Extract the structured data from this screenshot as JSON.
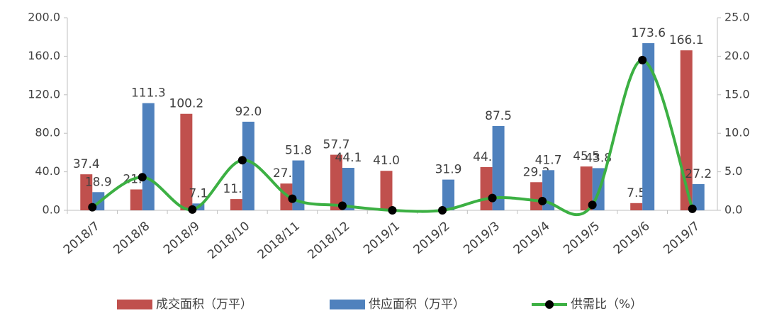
{
  "chart_data": {
    "type": "bar_line",
    "categories": [
      "2018/7",
      "2018/8",
      "2018/9",
      "2018/10",
      "2018/11",
      "2018/12",
      "2019/1",
      "2019/2",
      "2019/3",
      "2019/4",
      "2019/5",
      "2019/6",
      "2019/7"
    ],
    "series": [
      {
        "name": "成交面积（万平）",
        "type": "bar",
        "color": "#c0504d",
        "values": [
          37.4,
          21.7,
          100.2,
          11.7,
          27.8,
          57.7,
          41.0,
          null,
          44.9,
          29.2,
          45.5,
          7.5,
          166.1
        ],
        "value_labels": [
          "37.4",
          "21.7",
          "100.2",
          "11.7",
          "27.8",
          "57.7",
          "41.0",
          null,
          "44.9",
          "29.2",
          "45.5",
          "7.5",
          "166.1"
        ]
      },
      {
        "name": "供应面积（万平）",
        "type": "bar",
        "color": "#4f81bd",
        "values": [
          18.9,
          111.3,
          7.1,
          92.0,
          51.8,
          44.1,
          null,
          31.9,
          87.5,
          41.7,
          43.8,
          173.6,
          27.2
        ],
        "value_labels": [
          "18.9",
          "111.3",
          "7.1",
          "92.0",
          "51.8",
          "44.1",
          null,
          "31.9",
          "87.5",
          "41.7",
          "43.8",
          "173.6",
          "27.2"
        ]
      },
      {
        "name": "供需比（%）",
        "type": "line",
        "axis": "y2",
        "color": "#3cb043",
        "marker_color": "#000000",
        "values": [
          0.4,
          4.3,
          0.1,
          6.5,
          1.5,
          0.6,
          0,
          0,
          1.6,
          1.2,
          0.7,
          19.5,
          0.2
        ]
      }
    ],
    "ylim": [
      0,
      200
    ],
    "yticks": [
      {
        "value": 0,
        "label": "0.0"
      },
      {
        "value": 40,
        "label": "40.0"
      },
      {
        "value": 80,
        "label": "80.0"
      },
      {
        "value": 120,
        "label": "120.0"
      },
      {
        "value": 160,
        "label": "160.0"
      },
      {
        "value": 200,
        "label": "200.0"
      }
    ],
    "y2lim": [
      0,
      25
    ],
    "y2ticks": [
      {
        "value": 0,
        "label": "0.0"
      },
      {
        "value": 5,
        "label": "5.0"
      },
      {
        "value": 10,
        "label": "10.0"
      },
      {
        "value": 15,
        "label": "15.0"
      },
      {
        "value": 20,
        "label": "20.0"
      },
      {
        "value": 25,
        "label": "25.0"
      }
    ],
    "legend": "bottom"
  }
}
